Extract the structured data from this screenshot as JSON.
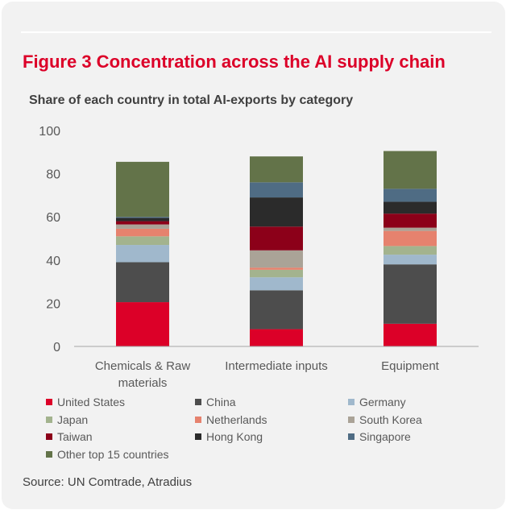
{
  "header": {
    "title": "Figure 3 Concentration across the AI supply chain",
    "subtitle": "Share of each country in total AI-exports by category"
  },
  "footer": {
    "source": "Source: UN Comtrade, Atradius"
  },
  "chart_data": {
    "type": "bar",
    "stacked": true,
    "categories": [
      "Chemicals & Raw materials",
      "Intermediate inputs",
      "Equipment"
    ],
    "category_lines": [
      [
        "Chemicals & Raw",
        "materials"
      ],
      [
        "Intermediate inputs"
      ],
      [
        "Equipment"
      ]
    ],
    "ylim": [
      0,
      100
    ],
    "yticks": [
      0,
      20,
      40,
      60,
      80,
      100
    ],
    "grid": false,
    "legend_position": "bottom",
    "series": [
      {
        "name": "United States",
        "color": "#dc0028",
        "values": [
          20.5,
          8,
          10.5
        ]
      },
      {
        "name": "China",
        "color": "#4d4d4d",
        "values": [
          18.5,
          18,
          27.5
        ]
      },
      {
        "name": "Germany",
        "color": "#a0b8cc",
        "values": [
          8,
          6,
          4.5
        ]
      },
      {
        "name": "Japan",
        "color": "#a3b38e",
        "values": [
          4,
          3.5,
          4
        ]
      },
      {
        "name": "Netherlands",
        "color": "#e6826e",
        "values": [
          3.5,
          1,
          7
        ]
      },
      {
        "name": "South Korea",
        "color": "#aaa397",
        "values": [
          2,
          8,
          1.5
        ]
      },
      {
        "name": "Taiwan",
        "color": "#8c0019",
        "values": [
          1.5,
          11,
          6.5
        ]
      },
      {
        "name": "Hong Kong",
        "color": "#2b2b2b",
        "values": [
          1.5,
          13.5,
          5.5
        ]
      },
      {
        "name": "Singapore",
        "color": "#4f6c84",
        "values": [
          0.5,
          7,
          6
        ]
      },
      {
        "name": "Other top 15 countries",
        "color": "#637349",
        "values": [
          25.5,
          12,
          17.5
        ]
      }
    ]
  }
}
